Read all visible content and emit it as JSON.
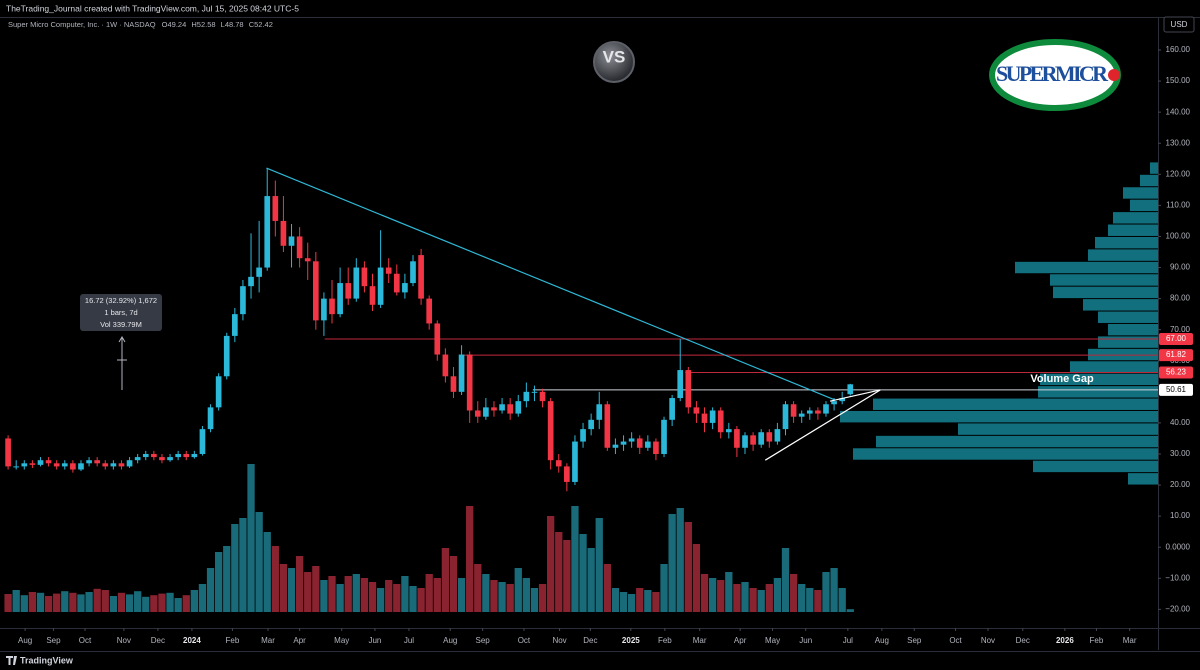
{
  "chart_data": {
    "type": "candlestick",
    "credit": "TheTrading_Journal created with TradingView.com, Jul 15, 2025 08:42 UTC-5",
    "title": "Super Micro Computer, Inc. · 1W · NASDAQ",
    "ohlc_prefixes": [
      "O",
      "H",
      "L",
      "C"
    ],
    "currency": "USD",
    "brand": "TradingView",
    "badge": "VS",
    "logo_text": "SUPERMICR",
    "annotation": "Volume Gap",
    "measure": [
      "16.72 (32.92%) 1,672",
      "1 bars, 7d",
      "Vol 339.79M"
    ],
    "grid": false,
    "up_color": "#2bb8d9",
    "down_color": "#f23645",
    "volume_up_color": "#1a6b7a",
    "volume_down_color": "#8a2330",
    "xlim": [
      -1,
      142
    ],
    "ylim": [
      -26,
      170.3
    ],
    "vlim": [
      0,
      400
    ],
    "xticks": [
      {
        "value": 2.1,
        "label": "Aug"
      },
      {
        "value": 5.6,
        "label": "Sep"
      },
      {
        "value": 9.5,
        "label": "Oct"
      },
      {
        "value": 14.3,
        "label": "Nov"
      },
      {
        "value": 18.5,
        "label": "Dec"
      },
      {
        "value": 22.7,
        "label": "2024"
      },
      {
        "value": 27.7,
        "label": "Feb"
      },
      {
        "value": 32.1,
        "label": "Mar"
      },
      {
        "value": 36,
        "label": "Apr"
      },
      {
        "value": 41.2,
        "label": "May"
      },
      {
        "value": 45.3,
        "label": "Jun"
      },
      {
        "value": 49.5,
        "label": "Jul"
      },
      {
        "value": 54.6,
        "label": "Aug"
      },
      {
        "value": 58.6,
        "label": "Sep"
      },
      {
        "value": 63.7,
        "label": "Oct"
      },
      {
        "value": 68.1,
        "label": "Nov"
      },
      {
        "value": 71.9,
        "label": "Dec"
      },
      {
        "value": 76.9,
        "label": "2025"
      },
      {
        "value": 81.1,
        "label": "Feb"
      },
      {
        "value": 85.4,
        "label": "Mar"
      },
      {
        "value": 90.4,
        "label": "Apr"
      },
      {
        "value": 94.4,
        "label": "May"
      },
      {
        "value": 98.5,
        "label": "Jun"
      },
      {
        "value": 103.7,
        "label": "Jul"
      },
      {
        "value": 107.9,
        "label": "Aug"
      },
      {
        "value": 111.9,
        "label": "Sep"
      },
      {
        "value": 117,
        "label": "Oct"
      },
      {
        "value": 121,
        "label": "Nov"
      },
      {
        "value": 125.3,
        "label": "Dec"
      },
      {
        "value": 130.5,
        "label": "2026"
      },
      {
        "value": 134.4,
        "label": "Feb"
      },
      {
        "value": 138.5,
        "label": "Mar"
      }
    ],
    "yticks": [
      {
        "value": 160,
        "label": "160.00"
      },
      {
        "value": 150,
        "label": "150.00"
      },
      {
        "value": 140,
        "label": "140.00"
      },
      {
        "value": 130,
        "label": "130.00"
      },
      {
        "value": 120,
        "label": "120.00"
      },
      {
        "value": 110,
        "label": "110.00"
      },
      {
        "value": 100,
        "label": "100.00"
      },
      {
        "value": 90,
        "label": "90.00"
      },
      {
        "value": 80,
        "label": "80.00"
      },
      {
        "value": 70,
        "label": "70.00"
      },
      {
        "value": 60,
        "label": "60.00"
      },
      {
        "value": 40,
        "label": "40.00"
      },
      {
        "value": 30,
        "label": "30.00"
      },
      {
        "value": 20,
        "label": "20.00"
      },
      {
        "value": 10,
        "label": "10.00"
      },
      {
        "value": 0,
        "label": "0.0000"
      },
      {
        "value": -10,
        "label": "−10.00"
      },
      {
        "value": -20,
        "label": "−20.00"
      }
    ],
    "candles": [
      [
        35,
        36,
        25,
        26
      ],
      [
        26,
        28,
        25,
        26
      ],
      [
        26,
        28,
        25,
        27
      ],
      [
        27,
        28,
        25.5,
        26.5
      ],
      [
        26.5,
        29,
        26,
        28
      ],
      [
        28,
        29,
        26,
        27
      ],
      [
        27,
        28,
        25,
        26
      ],
      [
        26,
        28,
        25,
        27
      ],
      [
        27,
        28,
        24,
        25
      ],
      [
        25,
        28,
        24.5,
        27
      ],
      [
        27,
        29,
        26,
        28
      ],
      [
        28,
        29,
        26,
        27
      ],
      [
        27,
        28,
        25,
        26
      ],
      [
        26,
        28,
        25,
        27
      ],
      [
        27,
        28,
        25,
        26
      ],
      [
        26,
        29,
        25.5,
        28
      ],
      [
        28,
        30,
        27,
        29
      ],
      [
        29,
        31,
        28,
        30
      ],
      [
        30,
        31,
        28,
        29
      ],
      [
        29,
        30,
        27,
        28
      ],
      [
        28,
        30,
        27.5,
        29
      ],
      [
        29,
        31,
        28,
        30
      ],
      [
        30,
        31,
        28,
        29
      ],
      [
        29,
        31,
        28.5,
        30
      ],
      [
        30,
        39,
        29.5,
        38
      ],
      [
        38,
        46,
        37,
        45
      ],
      [
        45,
        56,
        44,
        55
      ],
      [
        55,
        69,
        54,
        68
      ],
      [
        68,
        77,
        66,
        75
      ],
      [
        75,
        86,
        73,
        84
      ],
      [
        84,
        101,
        80,
        87
      ],
      [
        87,
        105,
        82,
        90
      ],
      [
        90,
        122,
        89,
        113
      ],
      [
        113,
        118,
        100,
        105
      ],
      [
        105,
        113,
        95,
        97
      ],
      [
        97,
        104,
        90,
        100
      ],
      [
        100,
        103,
        90,
        93
      ],
      [
        93,
        98,
        86,
        92
      ],
      [
        92,
        95,
        70,
        73
      ],
      [
        73,
        82,
        68,
        80
      ],
      [
        80,
        86,
        72,
        75
      ],
      [
        75,
        90,
        74,
        85
      ],
      [
        85,
        90,
        78,
        80
      ],
      [
        80,
        93,
        79,
        90
      ],
      [
        90,
        92,
        82,
        84
      ],
      [
        84,
        88,
        76,
        78
      ],
      [
        78,
        102,
        77,
        90
      ],
      [
        90,
        93,
        85,
        88
      ],
      [
        88,
        91,
        81,
        82
      ],
      [
        82,
        88,
        80,
        85
      ],
      [
        85,
        94,
        84,
        92
      ],
      [
        94,
        96,
        78,
        80
      ],
      [
        80,
        81,
        70,
        72
      ],
      [
        72,
        73,
        60,
        62
      ],
      [
        62,
        64,
        53,
        55
      ],
      [
        55,
        58,
        48,
        50
      ],
      [
        50,
        65,
        49,
        62
      ],
      [
        62,
        63,
        40,
        44
      ],
      [
        44,
        47,
        40,
        42
      ],
      [
        42,
        48,
        41,
        45
      ],
      [
        45,
        47,
        42,
        44
      ],
      [
        44,
        48,
        43,
        46
      ],
      [
        46,
        48,
        41,
        43
      ],
      [
        43,
        49,
        42,
        47
      ],
      [
        47,
        53,
        45,
        50
      ],
      [
        50,
        52,
        47,
        50
      ],
      [
        50,
        51,
        45,
        47
      ],
      [
        47,
        48,
        25,
        28
      ],
      [
        28,
        30,
        24,
        26
      ],
      [
        26,
        27,
        18,
        21
      ],
      [
        21,
        36,
        20,
        34
      ],
      [
        34,
        40,
        32,
        38
      ],
      [
        38,
        43,
        36,
        41
      ],
      [
        41,
        50,
        38,
        46
      ],
      [
        46,
        47,
        31,
        32
      ],
      [
        32,
        35,
        30,
        33
      ],
      [
        33,
        36,
        31,
        34
      ],
      [
        34,
        37,
        32,
        35
      ],
      [
        35,
        36,
        30,
        32
      ],
      [
        32,
        36,
        31,
        34
      ],
      [
        34,
        35,
        28,
        30
      ],
      [
        30,
        42,
        29,
        41
      ],
      [
        41,
        49,
        39,
        48
      ],
      [
        48,
        67,
        47,
        57
      ],
      [
        57,
        58,
        43,
        45
      ],
      [
        45,
        47,
        40,
        43
      ],
      [
        43,
        45,
        37,
        40
      ],
      [
        40,
        45,
        38,
        44
      ],
      [
        44,
        45,
        35,
        37
      ],
      [
        37,
        40,
        35,
        38
      ],
      [
        38,
        39,
        29,
        32
      ],
      [
        32,
        37,
        30,
        36
      ],
      [
        36,
        37,
        31,
        33
      ],
      [
        33,
        38,
        32,
        37
      ],
      [
        37,
        38,
        32,
        34
      ],
      [
        34,
        40,
        33,
        38
      ],
      [
        38,
        47,
        36,
        46
      ],
      [
        46,
        47,
        40,
        42
      ],
      [
        42,
        44,
        40,
        43
      ],
      [
        43,
        45,
        41,
        44
      ],
      [
        44,
        45,
        41,
        43
      ],
      [
        43,
        47,
        42,
        46
      ],
      [
        46,
        48,
        44,
        47
      ],
      [
        47,
        50,
        46,
        48
      ],
      [
        49.24,
        52.58,
        48.78,
        52.42
      ]
    ],
    "volume": [
      45,
      55,
      42,
      50,
      48,
      40,
      46,
      52,
      48,
      44,
      50,
      58,
      55,
      40,
      48,
      44,
      52,
      38,
      42,
      46,
      48,
      35,
      42,
      55,
      70,
      110,
      150,
      165,
      220,
      235,
      370,
      250,
      200,
      165,
      120,
      110,
      140,
      100,
      115,
      80,
      90,
      70,
      90,
      95,
      85,
      75,
      60,
      80,
      70,
      90,
      65,
      60,
      95,
      85,
      160,
      140,
      85,
      265,
      120,
      95,
      80,
      75,
      70,
      110,
      85,
      60,
      70,
      240,
      200,
      180,
      265,
      195,
      160,
      235,
      120,
      60,
      50,
      45,
      60,
      55,
      50,
      120,
      245,
      260,
      225,
      170,
      95,
      85,
      80,
      100,
      70,
      75,
      60,
      55,
      70,
      85,
      160,
      95,
      70,
      60,
      55,
      100,
      110,
      60,
      7
    ],
    "profile": {
      "color": "#137b8c",
      "xlim": [
        0,
        400
      ],
      "bins": [
        20,
        24,
        28,
        32,
        36,
        40,
        44,
        48,
        52,
        56,
        60,
        64,
        68,
        72,
        76,
        80,
        84,
        88,
        92,
        96,
        100,
        104,
        108,
        112,
        116,
        120,
        124
      ],
      "values": [
        30,
        125,
        305,
        282,
        200,
        318,
        285,
        120,
        118,
        88,
        70,
        60,
        50,
        60,
        75,
        105,
        108,
        143,
        70,
        63,
        50,
        45,
        28,
        35,
        18,
        8
      ]
    },
    "levels": [
      {
        "value": 67,
        "label": "67.00",
        "from": 39.1,
        "color": "#c0283b",
        "text_color": "#ffffff"
      },
      {
        "value": 61.82,
        "label": "61.82",
        "from": 56.2,
        "color": "#c0283b",
        "text_color": "#ffffff"
      },
      {
        "value": 56.23,
        "label": "56.23",
        "from": 83.6,
        "color": "#c0283b",
        "text_color": "#ffffff"
      },
      {
        "value": 50.61,
        "label": "50.61",
        "from": 64.8,
        "color": "#d1d4dc",
        "text_color": "#000000"
      }
    ],
    "trendlines": [
      {
        "points": [
          [
            31.9,
            122
          ],
          [
            102.1,
            47.4
          ]
        ],
        "color": "#2fb8d6"
      },
      {
        "points": [
          [
            93.5,
            28
          ],
          [
            107.7,
            50.6
          ]
        ],
        "color": "#ffffff"
      },
      {
        "points": [
          [
            101.5,
            47
          ],
          [
            107.7,
            50.6
          ]
        ],
        "color": "#ffffff"
      }
    ]
  }
}
